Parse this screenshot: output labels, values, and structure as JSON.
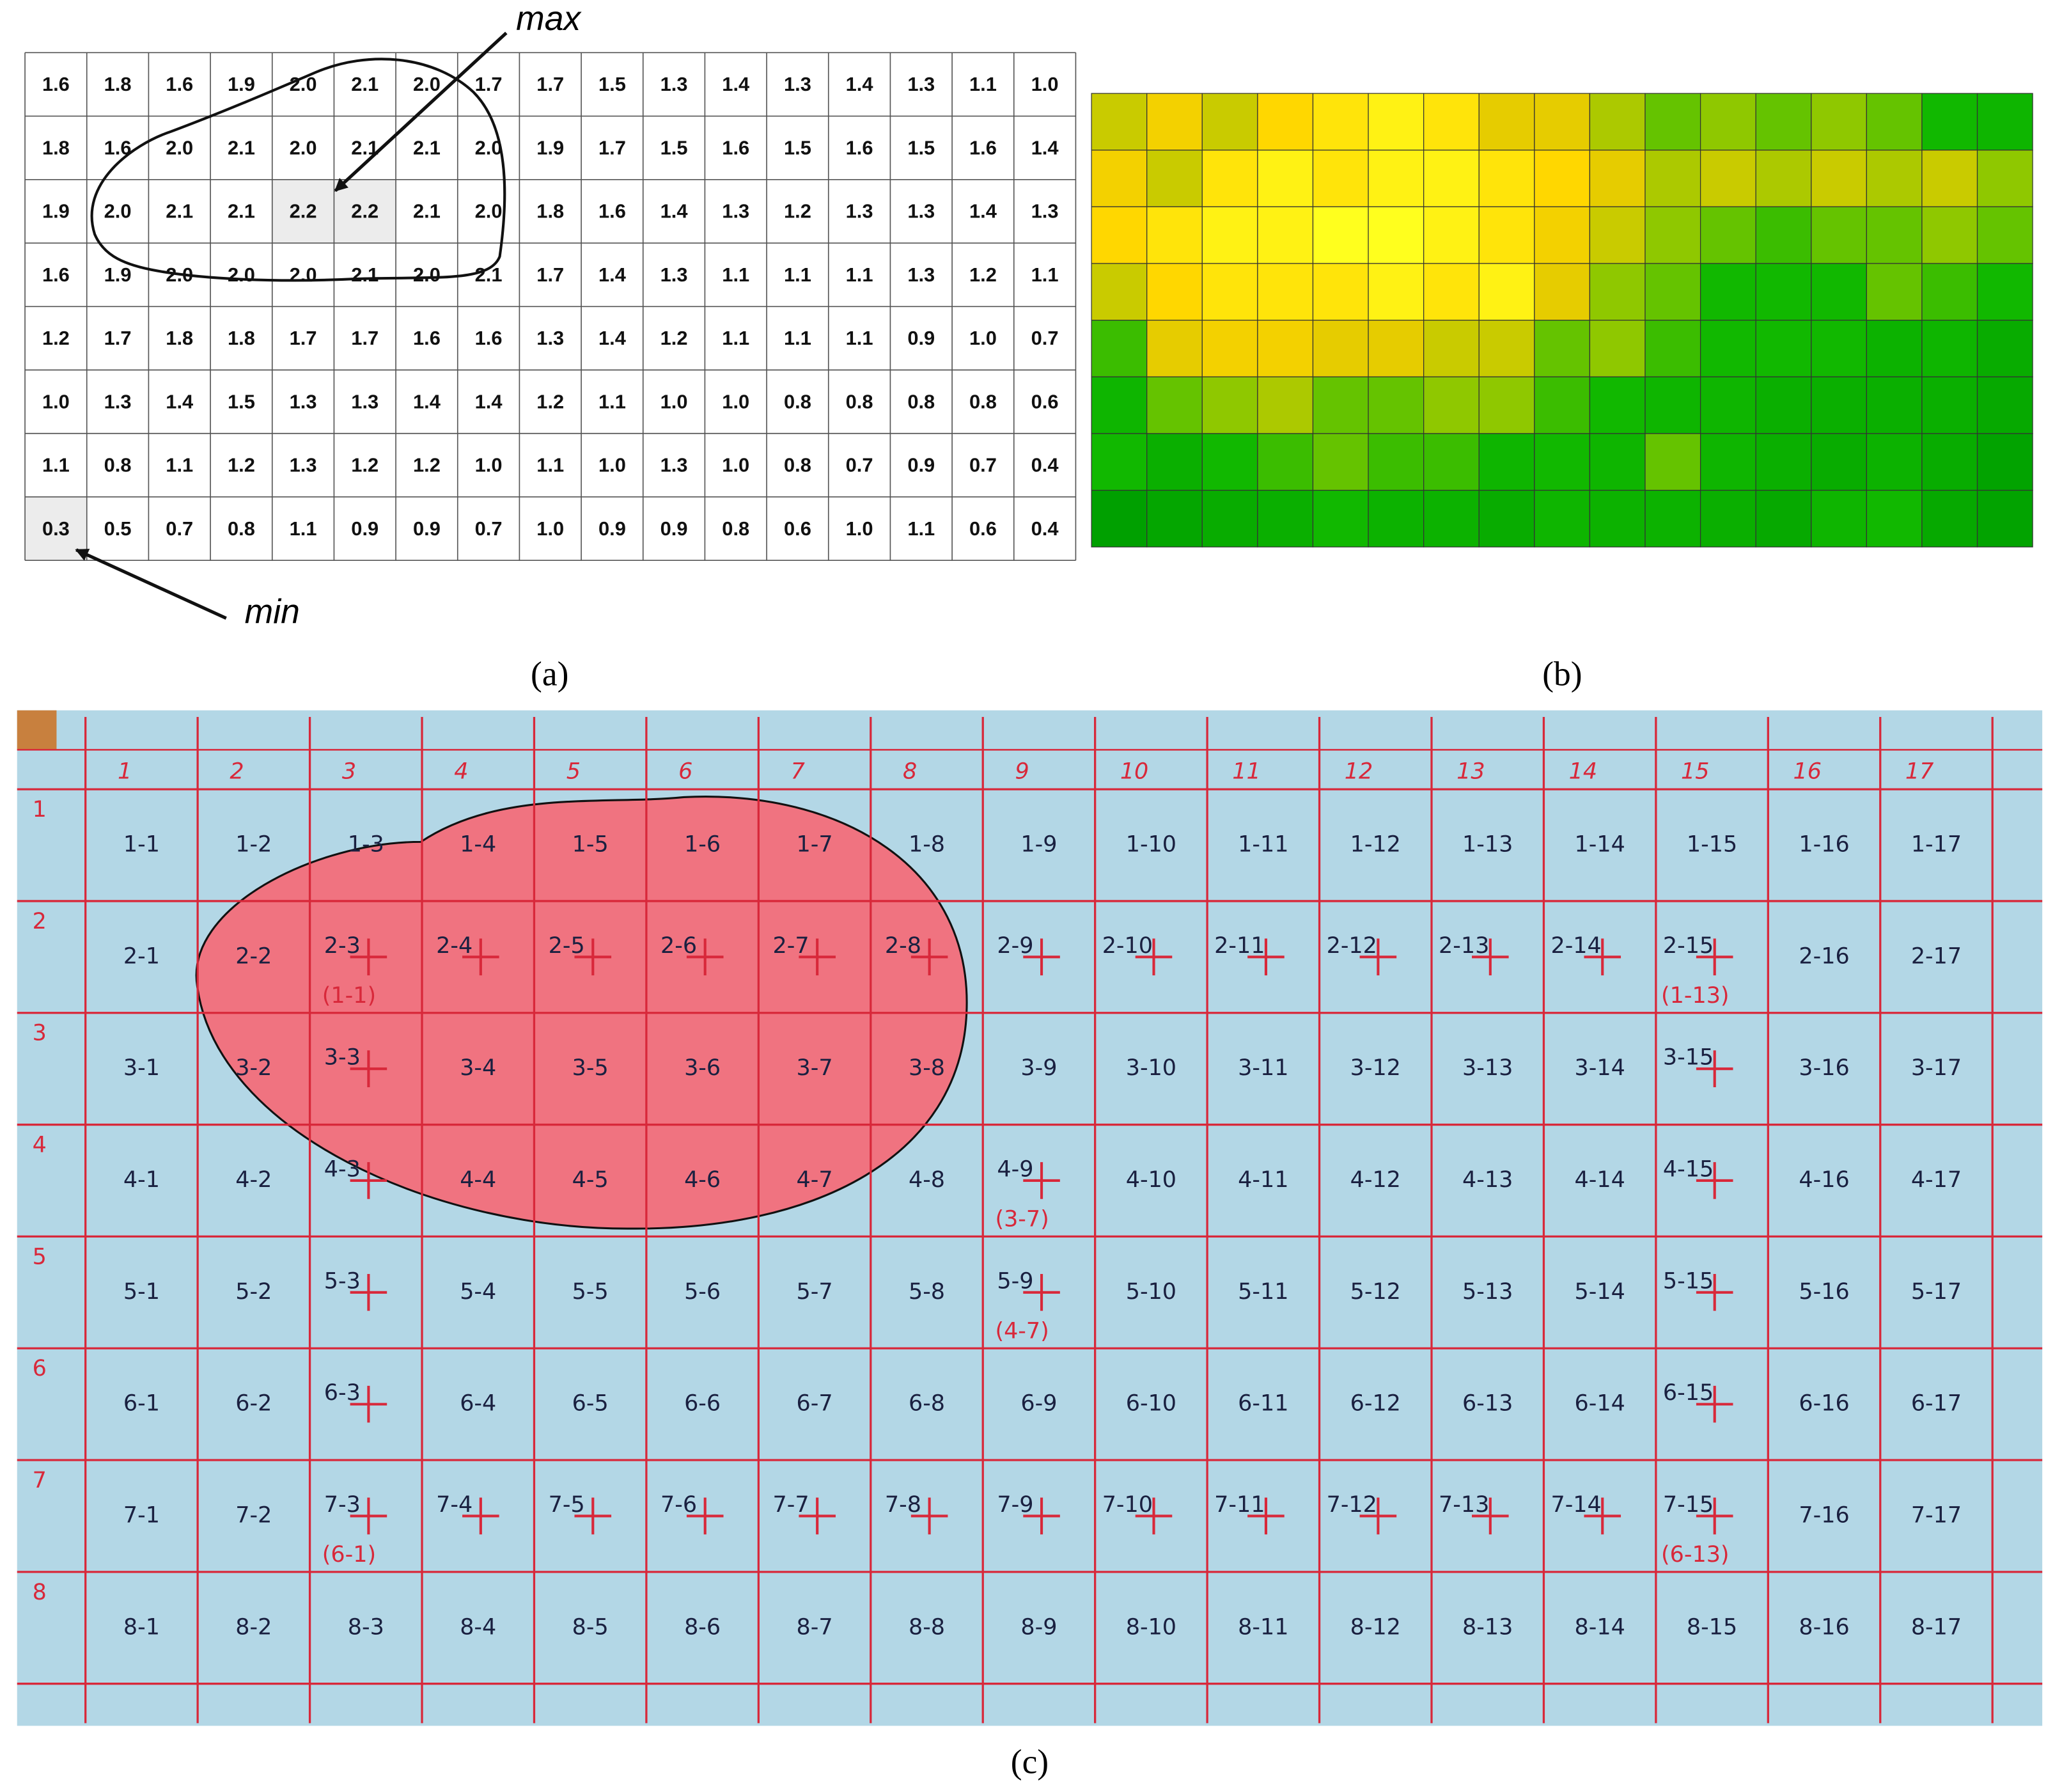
{
  "panel_a": {
    "label": "(a)",
    "max_label": "max",
    "min_label": "min",
    "rows": [
      [
        "1.6",
        "1.8",
        "1.6",
        "1.9",
        "2.0",
        "2.1",
        "2.0",
        "1.7",
        "1.7",
        "1.5",
        "1.3",
        "1.4",
        "1.3",
        "1.4",
        "1.3",
        "1.1",
        "1.0"
      ],
      [
        "1.8",
        "1.6",
        "2.0",
        "2.1",
        "2.0",
        "2.1",
        "2.1",
        "2.0",
        "1.9",
        "1.7",
        "1.5",
        "1.6",
        "1.5",
        "1.6",
        "1.5",
        "1.6",
        "1.4"
      ],
      [
        "1.9",
        "2.0",
        "2.1",
        "2.1",
        "2.2",
        "2.2",
        "2.1",
        "2.0",
        "1.8",
        "1.6",
        "1.4",
        "1.3",
        "1.2",
        "1.3",
        "1.3",
        "1.4",
        "1.3"
      ],
      [
        "1.6",
        "1.9",
        "2.0",
        "2.0",
        "2.0",
        "2.1",
        "2.0",
        "2.1",
        "1.7",
        "1.4",
        "1.3",
        "1.1",
        "1.1",
        "1.1",
        "1.3",
        "1.2",
        "1.1"
      ],
      [
        "1.2",
        "1.7",
        "1.8",
        "1.8",
        "1.7",
        "1.7",
        "1.6",
        "1.6",
        "1.3",
        "1.4",
        "1.2",
        "1.1",
        "1.1",
        "1.1",
        "0.9",
        "1.0",
        "0.7"
      ],
      [
        "1.0",
        "1.3",
        "1.4",
        "1.5",
        "1.3",
        "1.3",
        "1.4",
        "1.4",
        "1.2",
        "1.1",
        "1.0",
        "1.0",
        "0.8",
        "0.8",
        "0.8",
        "0.8",
        "0.6"
      ],
      [
        "1.1",
        "0.8",
        "1.1",
        "1.2",
        "1.3",
        "1.2",
        "1.2",
        "1.0",
        "1.1",
        "1.0",
        "1.3",
        "1.0",
        "0.8",
        "0.7",
        "0.9",
        "0.7",
        "0.4"
      ],
      [
        "0.3",
        "0.5",
        "0.7",
        "0.8",
        "1.1",
        "0.9",
        "0.9",
        "0.7",
        "1.0",
        "0.9",
        "0.9",
        "0.8",
        "0.6",
        "1.0",
        "1.1",
        "0.6",
        "0.4"
      ]
    ]
  },
  "panel_b": {
    "label": "(b)"
  },
  "panel_c": {
    "label": "(c)",
    "column_numbers": [
      "1",
      "2",
      "3",
      "4",
      "5",
      "6",
      "7",
      "8",
      "9",
      "10",
      "11",
      "12",
      "13",
      "14",
      "15",
      "16",
      "17"
    ],
    "row_numbers": [
      "1",
      "2",
      "3",
      "4",
      "5",
      "6",
      "7",
      "8"
    ],
    "cells": [
      [
        "1-1",
        "1-2",
        "1-3",
        "1-4",
        "1-5",
        "1-6",
        "1-7",
        "1-8",
        "1-9",
        "1-10",
        "1-11",
        "1-12",
        "1-13",
        "1-14",
        "1-15",
        "1-16",
        "1-17"
      ],
      [
        "2-1",
        "2-2",
        "2-3",
        "2-4",
        "2-5",
        "2-6",
        "2-7",
        "2-8",
        "2-9",
        "2-10",
        "2-11",
        "2-12",
        "2-13",
        "2-14",
        "2-15",
        "2-16",
        "2-17"
      ],
      [
        "3-1",
        "3-2",
        "3-3",
        "3-4",
        "3-5",
        "3-6",
        "3-7",
        "3-8",
        "3-9",
        "3-10",
        "3-11",
        "3-12",
        "3-13",
        "3-14",
        "3-15",
        "3-16",
        "3-17"
      ],
      [
        "4-1",
        "4-2",
        "4-3",
        "4-4",
        "4-5",
        "4-6",
        "4-7",
        "4-8",
        "4-9",
        "4-10",
        "4-11",
        "4-12",
        "4-13",
        "4-14",
        "4-15",
        "4-16",
        "4-17"
      ],
      [
        "5-1",
        "5-2",
        "5-3",
        "5-4",
        "5-5",
        "5-6",
        "5-7",
        "5-8",
        "5-9",
        "5-10",
        "5-11",
        "5-12",
        "5-13",
        "5-14",
        "5-15",
        "5-16",
        "5-17"
      ],
      [
        "6-1",
        "6-2",
        "6-3",
        "6-4",
        "6-5",
        "6-6",
        "6-7",
        "6-8",
        "6-9",
        "6-10",
        "6-11",
        "6-12",
        "6-13",
        "6-14",
        "6-15",
        "6-16",
        "6-17"
      ],
      [
        "7-1",
        "7-2",
        "7-3",
        "7-4",
        "7-5",
        "7-6",
        "7-7",
        "7-8",
        "7-9",
        "7-10",
        "7-11",
        "7-12",
        "7-13",
        "7-14",
        "7-15",
        "7-16",
        "7-17"
      ],
      [
        "8-1",
        "8-2",
        "8-3",
        "8-4",
        "8-5",
        "8-6",
        "8-7",
        "8-8",
        "8-9",
        "8-10",
        "8-11",
        "8-12",
        "8-13",
        "8-14",
        "8-15",
        "8-16",
        "8-17"
      ]
    ],
    "notes": [
      "(1-1)",
      "(1-13)",
      "(3-7)",
      "(4-7)",
      "(6-1)",
      "(6-13)"
    ]
  }
}
